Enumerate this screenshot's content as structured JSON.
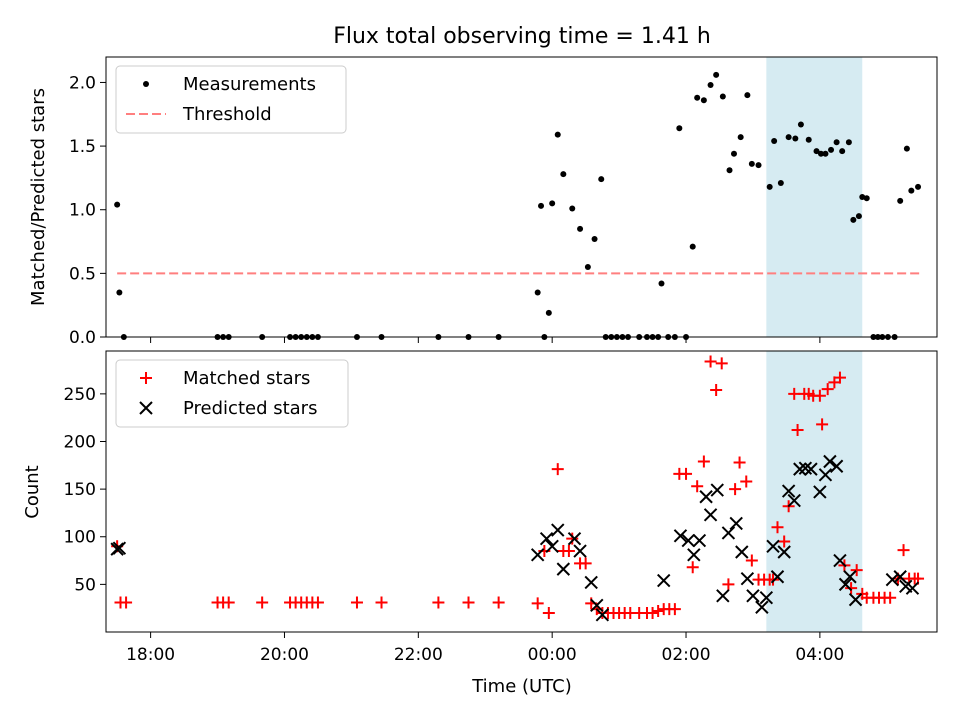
{
  "chart_data": [
    {
      "type": "scatter",
      "title": "Flux total observing time = 1.41 h",
      "ylabel": "Matched/Predicted stars",
      "xlabel": "",
      "xlim": [
        "17:20",
        "05:45"
      ],
      "ylim": [
        0,
        2.2
      ],
      "yticks": [
        "0.0",
        "0.5",
        "1.0",
        "1.5",
        "2.0"
      ],
      "highlight_span": [
        "03:12",
        "04:38"
      ],
      "legend": "top-left",
      "series": [
        {
          "name": "Measurements",
          "color": "#000000",
          "marker": "dot",
          "points": [
            [
              "17:30",
              1.04
            ],
            [
              "17:32",
              0.35
            ],
            [
              "17:36",
              0.0
            ],
            [
              "19:00",
              0.0
            ],
            [
              "19:05",
              0.0
            ],
            [
              "19:10",
              0.0
            ],
            [
              "19:40",
              0.0
            ],
            [
              "20:05",
              0.0
            ],
            [
              "20:10",
              0.0
            ],
            [
              "20:15",
              0.0
            ],
            [
              "20:20",
              0.0
            ],
            [
              "20:25",
              0.0
            ],
            [
              "20:30",
              0.0
            ],
            [
              "21:05",
              0.0
            ],
            [
              "21:27",
              0.0
            ],
            [
              "22:18",
              0.0
            ],
            [
              "22:45",
              0.0
            ],
            [
              "23:12",
              0.0
            ],
            [
              "23:47",
              0.35
            ],
            [
              "23:50",
              1.03
            ],
            [
              "23:53",
              0.0
            ],
            [
              "23:57",
              0.19
            ],
            [
              "00:00",
              1.05
            ],
            [
              "00:05",
              1.59
            ],
            [
              "00:10",
              1.28
            ],
            [
              "00:18",
              1.01
            ],
            [
              "00:25",
              0.85
            ],
            [
              "00:32",
              0.55
            ],
            [
              "00:38",
              0.77
            ],
            [
              "00:44",
              1.24
            ],
            [
              "00:48",
              0.0
            ],
            [
              "00:53",
              0.0
            ],
            [
              "00:58",
              0.0
            ],
            [
              "01:03",
              0.0
            ],
            [
              "01:08",
              0.0
            ],
            [
              "01:18",
              0.0
            ],
            [
              "01:25",
              0.0
            ],
            [
              "01:30",
              0.0
            ],
            [
              "01:35",
              0.0
            ],
            [
              "01:38",
              0.42
            ],
            [
              "01:44",
              0.0
            ],
            [
              "01:50",
              0.0
            ],
            [
              "01:54",
              1.64
            ],
            [
              "02:00",
              0.0
            ],
            [
              "02:06",
              0.71
            ],
            [
              "02:10",
              1.88
            ],
            [
              "02:16",
              1.86
            ],
            [
              "02:22",
              1.98
            ],
            [
              "02:27",
              2.06
            ],
            [
              "02:33",
              1.89
            ],
            [
              "02:39",
              1.31
            ],
            [
              "02:43",
              1.44
            ],
            [
              "02:49",
              1.57
            ],
            [
              "02:55",
              1.9
            ],
            [
              "02:59",
              1.36
            ],
            [
              "03:05",
              1.35
            ],
            [
              "03:15",
              1.18
            ],
            [
              "03:19",
              1.54
            ],
            [
              "03:25",
              1.21
            ],
            [
              "03:32",
              1.57
            ],
            [
              "03:38",
              1.56
            ],
            [
              "03:43",
              1.67
            ],
            [
              "03:50",
              1.55
            ],
            [
              "03:57",
              1.46
            ],
            [
              "04:01",
              1.44
            ],
            [
              "04:05",
              1.44
            ],
            [
              "04:10",
              1.47
            ],
            [
              "04:15",
              1.53
            ],
            [
              "04:20",
              1.46
            ],
            [
              "04:26",
              1.53
            ],
            [
              "04:30",
              0.92
            ],
            [
              "04:35",
              0.95
            ],
            [
              "04:38",
              1.1
            ],
            [
              "04:42",
              1.09
            ],
            [
              "04:48",
              0.0
            ],
            [
              "04:52",
              0.0
            ],
            [
              "04:56",
              0.0
            ],
            [
              "05:01",
              0.0
            ],
            [
              "05:07",
              0.0
            ],
            [
              "05:12",
              1.07
            ],
            [
              "05:18",
              1.48
            ],
            [
              "05:22",
              1.15
            ],
            [
              "05:28",
              1.18
            ]
          ]
        },
        {
          "name": "Threshold",
          "color": "#ff7f7f",
          "marker": "dashed-line",
          "points": [
            [
              "17:30",
              0.5
            ],
            [
              "05:30",
              0.5
            ]
          ]
        }
      ]
    },
    {
      "type": "scatter",
      "title": "",
      "xlabel": "Time (UTC)",
      "ylabel": "Count",
      "xlim": [
        "17:20",
        "05:45"
      ],
      "ylim": [
        0,
        295
      ],
      "yticks": [
        "50",
        "100",
        "150",
        "200",
        "250"
      ],
      "xticks": [
        "18:00",
        "20:00",
        "22:00",
        "00:00",
        "02:00",
        "04:00"
      ],
      "highlight_span": [
        "03:12",
        "04:38"
      ],
      "legend": "top-left",
      "series": [
        {
          "name": "Matched stars",
          "color": "#ff0000",
          "marker": "plus",
          "points": [
            [
              "17:30",
              90
            ],
            [
              "17:33",
              31
            ],
            [
              "17:38",
              31
            ],
            [
              "19:00",
              31
            ],
            [
              "19:05",
              31
            ],
            [
              "19:10",
              31
            ],
            [
              "19:40",
              31
            ],
            [
              "20:05",
              31
            ],
            [
              "20:10",
              31
            ],
            [
              "20:15",
              31
            ],
            [
              "20:20",
              31
            ],
            [
              "20:25",
              31
            ],
            [
              "20:30",
              31
            ],
            [
              "21:05",
              31
            ],
            [
              "21:27",
              31
            ],
            [
              "22:18",
              31
            ],
            [
              "22:45",
              31
            ],
            [
              "23:12",
              31
            ],
            [
              "23:47",
              30
            ],
            [
              "23:53",
              85
            ],
            [
              "23:57",
              20
            ],
            [
              "24:05",
              171
            ],
            [
              "24:10",
              85
            ],
            [
              "24:15",
              85
            ],
            [
              "24:18",
              98
            ],
            [
              "24:25",
              72
            ],
            [
              "24:30",
              72
            ],
            [
              "24:35",
              30
            ],
            [
              "24:40",
              24
            ],
            [
              "24:45",
              20
            ],
            [
              "24:50",
              20
            ],
            [
              "24:55",
              20
            ],
            [
              "25:00",
              20
            ],
            [
              "25:05",
              20
            ],
            [
              "25:10",
              20
            ],
            [
              "25:18",
              20
            ],
            [
              "25:25",
              20
            ],
            [
              "25:30",
              20
            ],
            [
              "25:35",
              22
            ],
            [
              "25:40",
              24
            ],
            [
              "25:45",
              24
            ],
            [
              "25:50",
              24
            ],
            [
              "25:54",
              166
            ],
            [
              "26:00",
              166
            ],
            [
              "26:06",
              68
            ],
            [
              "26:10",
              153
            ],
            [
              "26:16",
              179
            ],
            [
              "26:22",
              284
            ],
            [
              "26:27",
              254
            ],
            [
              "26:32",
              282
            ],
            [
              "26:38",
              50
            ],
            [
              "26:44",
              150
            ],
            [
              "26:48",
              178
            ],
            [
              "26:54",
              158
            ],
            [
              "26:59",
              75
            ],
            [
              "27:05",
              55
            ],
            [
              "27:10",
              55
            ],
            [
              "27:15",
              55
            ],
            [
              "27:18",
              55
            ],
            [
              "27:22",
              110
            ],
            [
              "27:28",
              95
            ],
            [
              "27:32",
              132
            ],
            [
              "27:37",
              250
            ],
            [
              "27:40",
              212
            ],
            [
              "27:46",
              250
            ],
            [
              "27:50",
              250
            ],
            [
              "27:54",
              248
            ],
            [
              "28:00",
              248
            ],
            [
              "28:02",
              218
            ],
            [
              "28:07",
              255
            ],
            [
              "28:13",
              262
            ],
            [
              "28:18",
              267
            ],
            [
              "28:22",
              70
            ],
            [
              "28:28",
              46
            ],
            [
              "28:33",
              65
            ],
            [
              "28:38",
              40
            ],
            [
              "28:42",
              36
            ],
            [
              "28:48",
              36
            ],
            [
              "28:53",
              36
            ],
            [
              "28:58",
              36
            ],
            [
              "29:03",
              36
            ],
            [
              "29:10",
              56
            ],
            [
              "29:15",
              86
            ],
            [
              "29:20",
              56
            ],
            [
              "29:25",
              56
            ],
            [
              "29:28",
              56
            ]
          ]
        },
        {
          "name": "Predicted stars",
          "color": "#000000",
          "marker": "x",
          "points": [
            [
              "17:30",
              87
            ],
            [
              "17:32",
              88
            ],
            [
              "23:47",
              81
            ],
            [
              "23:55",
              98
            ],
            [
              "24:00",
              90
            ],
            [
              "24:05",
              107
            ],
            [
              "24:10",
              66
            ],
            [
              "24:20",
              98
            ],
            [
              "24:25",
              85
            ],
            [
              "24:35",
              52
            ],
            [
              "24:40",
              28
            ],
            [
              "24:45",
              18
            ],
            [
              "25:40",
              54
            ],
            [
              "25:55",
              101
            ],
            [
              "26:02",
              96
            ],
            [
              "26:07",
              81
            ],
            [
              "26:12",
              96
            ],
            [
              "26:18",
              142
            ],
            [
              "26:22",
              123
            ],
            [
              "26:28",
              149
            ],
            [
              "26:33",
              38
            ],
            [
              "26:38",
              104
            ],
            [
              "26:45",
              114
            ],
            [
              "26:50",
              84
            ],
            [
              "26:55",
              56
            ],
            [
              "27:00",
              38
            ],
            [
              "27:08",
              26
            ],
            [
              "27:12",
              36
            ],
            [
              "27:18",
              90
            ],
            [
              "27:22",
              58
            ],
            [
              "27:28",
              84
            ],
            [
              "27:32",
              148
            ],
            [
              "27:37",
              138
            ],
            [
              "27:42",
              171
            ],
            [
              "27:47",
              172
            ],
            [
              "27:52",
              171
            ],
            [
              "28:00",
              147
            ],
            [
              "28:05",
              165
            ],
            [
              "28:09",
              179
            ],
            [
              "28:15",
              174
            ],
            [
              "28:18",
              75
            ],
            [
              "28:23",
              50
            ],
            [
              "28:27",
              58
            ],
            [
              "28:32",
              34
            ],
            [
              "29:05",
              55
            ],
            [
              "29:12",
              58
            ],
            [
              "29:17",
              48
            ],
            [
              "29:23",
              46
            ]
          ]
        }
      ]
    }
  ]
}
